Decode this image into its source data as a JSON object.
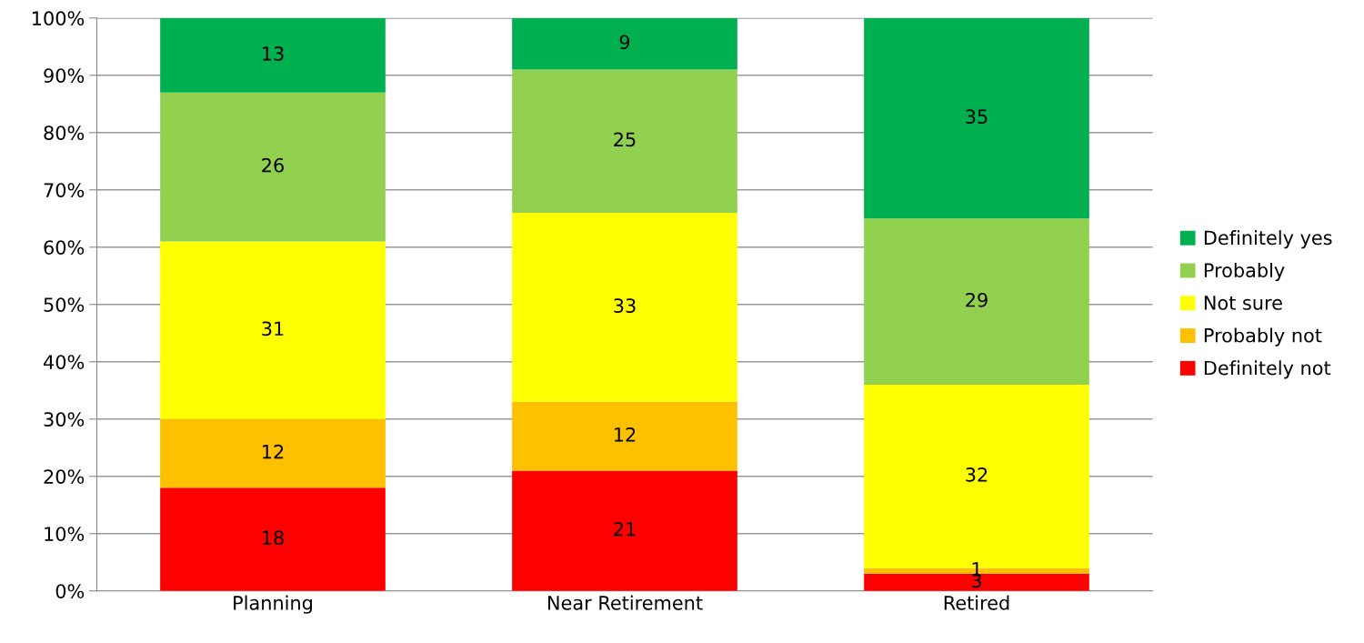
{
  "chart_data": {
    "type": "bar",
    "stacked": true,
    "data_labels": true,
    "categories": [
      "Planning",
      "Near Retirement",
      "Retired"
    ],
    "series": [
      {
        "name": "Definitely not",
        "color": "#ff0000",
        "values": [
          18,
          21,
          3
        ]
      },
      {
        "name": "Probably not",
        "color": "#ffc000",
        "values": [
          12,
          12,
          1
        ]
      },
      {
        "name": "Not sure",
        "color": "#ffff00",
        "values": [
          31,
          33,
          32
        ]
      },
      {
        "name": "Probably",
        "color": "#92d050",
        "values": [
          26,
          25,
          29
        ]
      },
      {
        "name": "Definitely yes",
        "color": "#00b050",
        "values": [
          13,
          9,
          35
        ]
      }
    ],
    "ylim": [
      0,
      100
    ],
    "yticks": [
      {
        "value": 0,
        "label": "0%"
      },
      {
        "value": 10,
        "label": "10%"
      },
      {
        "value": 20,
        "label": "20%"
      },
      {
        "value": 30,
        "label": "30%"
      },
      {
        "value": 40,
        "label": "40%"
      },
      {
        "value": 50,
        "label": "50%"
      },
      {
        "value": 60,
        "label": "60%"
      },
      {
        "value": 70,
        "label": "70%"
      },
      {
        "value": 80,
        "label": "80%"
      },
      {
        "value": 90,
        "label": "90%"
      },
      {
        "value": 100,
        "label": "100%"
      }
    ],
    "grid": "y",
    "legend": "right"
  }
}
